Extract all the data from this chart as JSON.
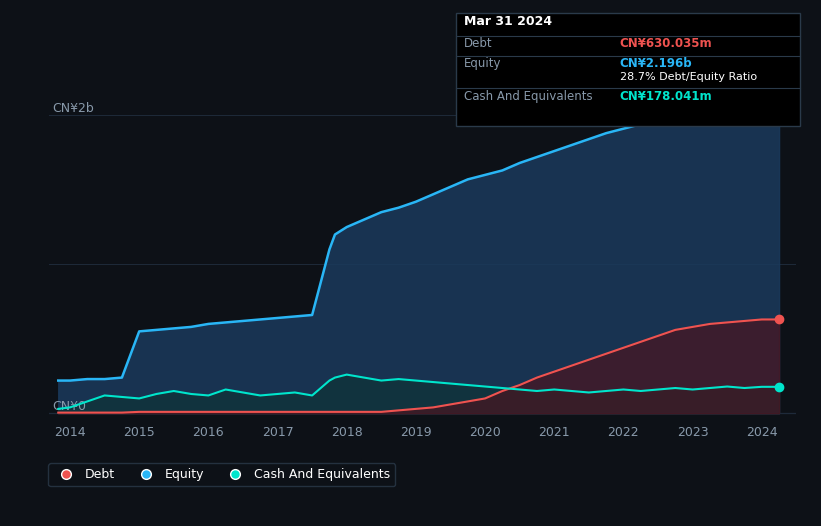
{
  "background_color": "#0d1117",
  "plot_bg_color": "#0d1117",
  "tooltip": {
    "date": "Mar 31 2024",
    "debt": "CN¥630.035m",
    "equity": "CN¥2.196b",
    "de_ratio": "28.7% Debt/Equity Ratio",
    "cash": "CN¥178.041m"
  },
  "ylabel_top": "CN¥2b",
  "ylabel_bottom": "CN¥0",
  "xlim": [
    2013.7,
    2024.5
  ],
  "ylim": [
    -50000000.0,
    2350000000.0
  ],
  "xticks": [
    2014,
    2015,
    2016,
    2017,
    2018,
    2019,
    2020,
    2021,
    2022,
    2023,
    2024
  ],
  "equity_color": "#29b6f6",
  "equity_fill": "#1a3a5c",
  "debt_color": "#ef5350",
  "debt_fill": "#4a1520",
  "cash_color": "#00e5cc",
  "cash_fill": "#0d3330",
  "grid_color": "#1e2a3a",
  "tick_color": "#8899aa",
  "legend_bg": "#0d1117",
  "legend_border": "#2a3a4a",
  "equity_x": [
    2013.83,
    2014.0,
    2014.25,
    2014.5,
    2014.75,
    2015.0,
    2015.25,
    2015.5,
    2015.75,
    2016.0,
    2016.25,
    2016.5,
    2016.75,
    2017.0,
    2017.25,
    2017.5,
    2017.75,
    2017.83,
    2018.0,
    2018.25,
    2018.5,
    2018.75,
    2019.0,
    2019.25,
    2019.5,
    2019.75,
    2020.0,
    2020.25,
    2020.5,
    2020.75,
    2021.0,
    2021.25,
    2021.5,
    2021.75,
    2022.0,
    2022.25,
    2022.5,
    2022.75,
    2023.0,
    2023.25,
    2023.5,
    2023.75,
    2024.0,
    2024.25
  ],
  "equity_y": [
    220000000,
    220000000,
    230000000,
    230000000,
    240000000,
    550000000,
    560000000,
    570000000,
    580000000,
    600000000,
    610000000,
    620000000,
    630000000,
    640000000,
    650000000,
    660000000,
    1100000000,
    1200000000,
    1250000000,
    1300000000,
    1350000000,
    1380000000,
    1420000000,
    1470000000,
    1520000000,
    1570000000,
    1600000000,
    1630000000,
    1680000000,
    1720000000,
    1760000000,
    1800000000,
    1840000000,
    1880000000,
    1910000000,
    1940000000,
    1970000000,
    2000000000,
    2030000000,
    2070000000,
    2100000000,
    2130000000,
    2196000000,
    2196000000
  ],
  "debt_x": [
    2013.83,
    2014.0,
    2014.25,
    2014.5,
    2014.75,
    2015.0,
    2015.25,
    2015.5,
    2015.75,
    2016.0,
    2016.25,
    2016.5,
    2016.75,
    2017.0,
    2017.25,
    2017.5,
    2017.75,
    2017.83,
    2018.0,
    2018.25,
    2018.5,
    2018.75,
    2019.0,
    2019.25,
    2019.5,
    2019.75,
    2020.0,
    2020.25,
    2020.5,
    2020.75,
    2021.0,
    2021.25,
    2021.5,
    2021.75,
    2022.0,
    2022.25,
    2022.5,
    2022.75,
    2023.0,
    2023.25,
    2023.5,
    2023.75,
    2024.0,
    2024.25
  ],
  "debt_y": [
    5000000,
    5000000,
    5000000,
    5000000,
    5000000,
    10000000,
    10000000,
    10000000,
    10000000,
    10000000,
    10000000,
    10000000,
    10000000,
    10000000,
    10000000,
    10000000,
    10000000,
    10000000,
    10000000,
    10000000,
    10000000,
    20000000,
    30000000,
    40000000,
    60000000,
    80000000,
    100000000,
    150000000,
    190000000,
    240000000,
    280000000,
    320000000,
    360000000,
    400000000,
    440000000,
    480000000,
    520000000,
    560000000,
    580000000,
    600000000,
    610000000,
    620000000,
    630000000,
    630000000
  ],
  "cash_x": [
    2013.83,
    2014.0,
    2014.25,
    2014.5,
    2014.75,
    2015.0,
    2015.25,
    2015.5,
    2015.75,
    2016.0,
    2016.25,
    2016.5,
    2016.75,
    2017.0,
    2017.25,
    2017.5,
    2017.75,
    2017.83,
    2018.0,
    2018.25,
    2018.5,
    2018.75,
    2019.0,
    2019.25,
    2019.5,
    2019.75,
    2020.0,
    2020.25,
    2020.5,
    2020.75,
    2021.0,
    2021.25,
    2021.5,
    2021.75,
    2022.0,
    2022.25,
    2022.5,
    2022.75,
    2023.0,
    2023.25,
    2023.5,
    2023.75,
    2024.0,
    2024.25
  ],
  "cash_y": [
    30000000,
    40000000,
    80000000,
    120000000,
    110000000,
    100000000,
    130000000,
    150000000,
    130000000,
    120000000,
    160000000,
    140000000,
    120000000,
    130000000,
    140000000,
    120000000,
    220000000,
    240000000,
    260000000,
    240000000,
    220000000,
    230000000,
    220000000,
    210000000,
    200000000,
    190000000,
    180000000,
    170000000,
    160000000,
    150000000,
    160000000,
    150000000,
    140000000,
    150000000,
    160000000,
    150000000,
    160000000,
    170000000,
    160000000,
    170000000,
    180000000,
    170000000,
    178000000,
    178000000
  ]
}
